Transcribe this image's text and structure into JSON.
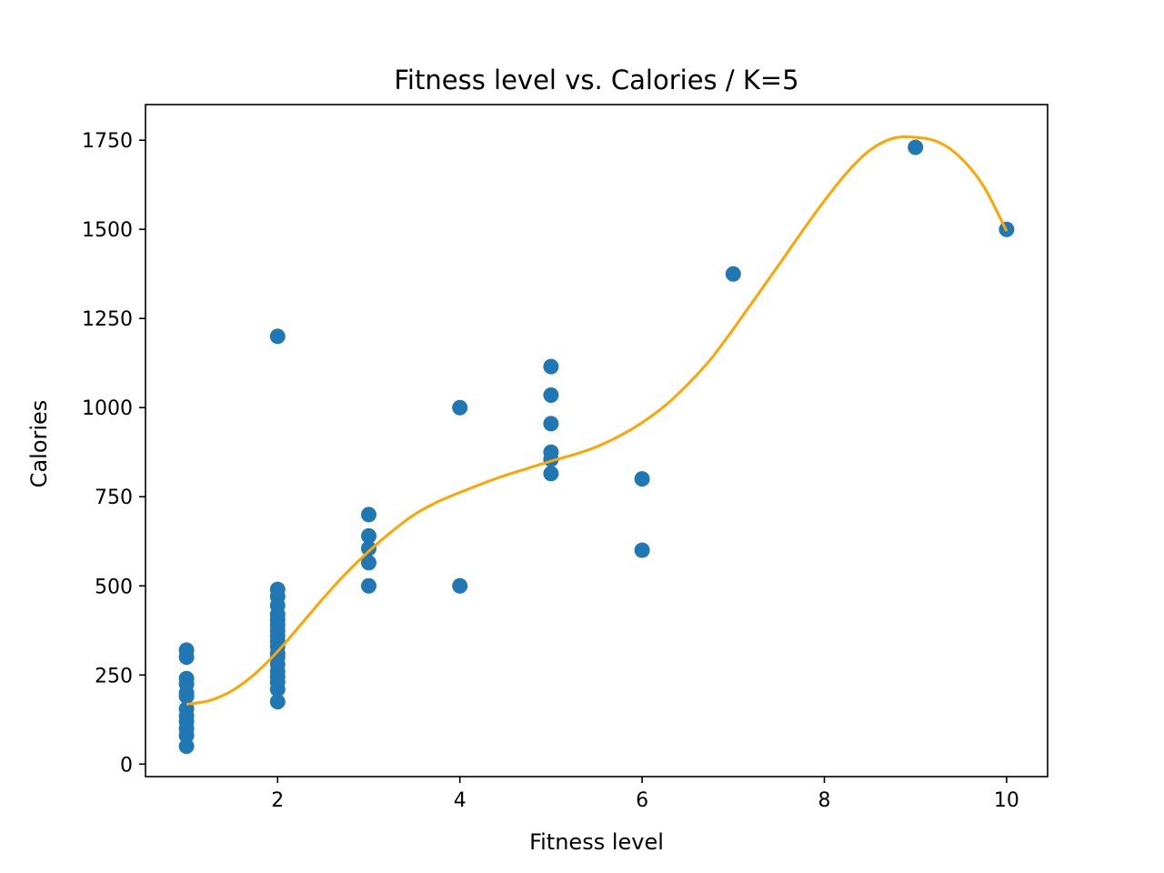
{
  "chart_data": {
    "type": "scatter",
    "title": "Fitness level vs. Calories / K=5",
    "xlabel": "Fitness level",
    "ylabel": "Calories",
    "xlim": [
      0.55,
      10.45
    ],
    "ylim": [
      -35,
      1850
    ],
    "xticks": [
      2,
      4,
      6,
      8,
      10
    ],
    "yticks": [
      0,
      250,
      500,
      750,
      1000,
      1250,
      1500,
      1750
    ],
    "grid": false,
    "legend": "none",
    "colors": {
      "scatter": "#1f77b4",
      "fit": "#ffa500",
      "axes": "#000000"
    },
    "series": [
      {
        "kind": "scatter",
        "points": [
          [
            1,
            50
          ],
          [
            1,
            80
          ],
          [
            1,
            100
          ],
          [
            1,
            120
          ],
          [
            1,
            135
          ],
          [
            1,
            155
          ],
          [
            1,
            190
          ],
          [
            1,
            200
          ],
          [
            1,
            225
          ],
          [
            1,
            240
          ],
          [
            1,
            300
          ],
          [
            1,
            320
          ],
          [
            2,
            175
          ],
          [
            2,
            210
          ],
          [
            2,
            230
          ],
          [
            2,
            245
          ],
          [
            2,
            260
          ],
          [
            2,
            280
          ],
          [
            2,
            300
          ],
          [
            2,
            310
          ],
          [
            2,
            330
          ],
          [
            2,
            345
          ],
          [
            2,
            360
          ],
          [
            2,
            375
          ],
          [
            2,
            390
          ],
          [
            2,
            405
          ],
          [
            2,
            420
          ],
          [
            2,
            445
          ],
          [
            2,
            470
          ],
          [
            2,
            490
          ],
          [
            2,
            1200
          ],
          [
            3,
            500
          ],
          [
            3,
            565
          ],
          [
            3,
            605
          ],
          [
            3,
            640
          ],
          [
            3,
            700
          ],
          [
            4,
            500
          ],
          [
            4,
            1000
          ],
          [
            5,
            815
          ],
          [
            5,
            855
          ],
          [
            5,
            875
          ],
          [
            5,
            955
          ],
          [
            5,
            1035
          ],
          [
            5,
            1115
          ],
          [
            6,
            600
          ],
          [
            6,
            800
          ],
          [
            7,
            1375
          ],
          [
            9,
            1730
          ],
          [
            10,
            1500
          ]
        ]
      },
      {
        "kind": "line",
        "x": [
          1,
          1.25,
          1.5,
          1.75,
          2,
          2.25,
          2.5,
          2.75,
          3,
          3.25,
          3.5,
          3.75,
          4,
          4.25,
          4.5,
          4.75,
          5,
          5.25,
          5.5,
          5.75,
          6,
          6.25,
          6.5,
          6.75,
          7,
          7.25,
          7.5,
          7.75,
          8,
          8.25,
          8.5,
          8.75,
          9,
          9.25,
          9.5,
          9.75,
          10
        ],
        "y": [
          168,
          178,
          206,
          253,
          316,
          390,
          465,
          535,
          597,
          652,
          700,
          735,
          762,
          787,
          810,
          830,
          850,
          868,
          890,
          920,
          958,
          1005,
          1065,
          1135,
          1220,
          1310,
          1400,
          1492,
          1580,
          1660,
          1722,
          1755,
          1758,
          1745,
          1700,
          1620,
          1495
        ]
      }
    ]
  }
}
